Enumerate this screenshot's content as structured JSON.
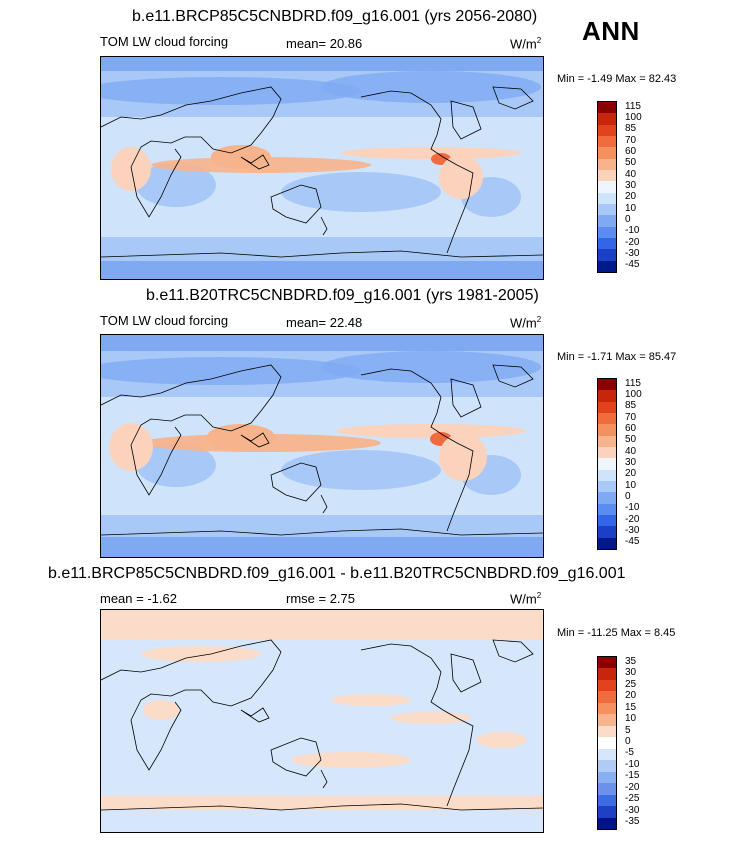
{
  "season": "ANN",
  "panels": [
    {
      "title": "b.e11.BRCP85C5CNBDRD.f09_g16.001 (yrs 2056-2080)",
      "variable": "TOM LW cloud forcing",
      "stat_text": "mean=  20.86",
      "units": "W/m",
      "units_sup": "2",
      "minmax_text": "Min =  -1.49 Max =  82.43"
    },
    {
      "title": "b.e11.B20TRC5CNBDRD.f09_g16.001 (yrs 1981-2005)",
      "variable": "TOM LW cloud forcing",
      "stat_text": "mean=  22.48",
      "units": "W/m",
      "units_sup": "2",
      "minmax_text": "Min =  -1.71 Max =  85.47"
    },
    {
      "title": "b.e11.BRCP85C5CNBDRD.f09_g16.001 - b.e11.B20TRC5CNBDRD.f09_g16.001",
      "variable": "mean =  -1.62",
      "stat_text": "rmse =   2.75",
      "units": "W/m",
      "units_sup": "2",
      "minmax_text": "Min = -11.25 Max =   8.45"
    }
  ],
  "chart_data": [
    {
      "type": "heatmap",
      "title": "b.e11.BRCP85C5CNBDRD.f09_g16.001 (yrs 2056-2080)",
      "variable": "TOM LW cloud forcing",
      "mean": 20.86,
      "min": -1.49,
      "max": 82.43,
      "units": "W/m2",
      "colorbar_levels": [
        "115",
        "100",
        "85",
        "70",
        "60",
        "50",
        "40",
        "30",
        "20",
        "10",
        "0",
        "-10",
        "-20",
        "-30",
        "-45"
      ]
    },
    {
      "type": "heatmap",
      "title": "b.e11.B20TRC5CNBDRD.f09_g16.001 (yrs 1981-2005)",
      "variable": "TOM LW cloud forcing",
      "mean": 22.48,
      "min": -1.71,
      "max": 85.47,
      "units": "W/m2",
      "colorbar_levels": [
        "115",
        "100",
        "85",
        "70",
        "60",
        "50",
        "40",
        "30",
        "20",
        "10",
        "0",
        "-10",
        "-20",
        "-30",
        "-45"
      ]
    },
    {
      "type": "heatmap",
      "title": "b.e11.BRCP85C5CNBDRD.f09_g16.001 - b.e11.B20TRC5CNBDRD.f09_g16.001",
      "mean": -1.62,
      "rmse": 2.75,
      "min": -11.25,
      "max": 8.45,
      "units": "W/m2",
      "colorbar_levels": [
        "35",
        "30",
        "25",
        "20",
        "15",
        "10",
        "5",
        "0",
        "-5",
        "-10",
        "-15",
        "-20",
        "-25",
        "-30",
        "-35"
      ]
    }
  ],
  "palette_main": [
    "#8b0000",
    "#c8260a",
    "#e2431d",
    "#f06b3e",
    "#f4915f",
    "#f7b38b",
    "#fbd3bd",
    "#f0f4fb",
    "#cfe3fb",
    "#a8c8f7",
    "#7faaf2",
    "#5a8def",
    "#3366e6",
    "#1a40c8",
    "#001a8c"
  ],
  "palette_diff": [
    "#8b0000",
    "#c8260a",
    "#e2431d",
    "#f06b3e",
    "#f4915f",
    "#f7b38b",
    "#fbdcc8",
    "#ffffff",
    "#d6e6fb",
    "#b0cbf5",
    "#8aaff0",
    "#6b91eb",
    "#3d6be3",
    "#1f40c2",
    "#00148a"
  ]
}
